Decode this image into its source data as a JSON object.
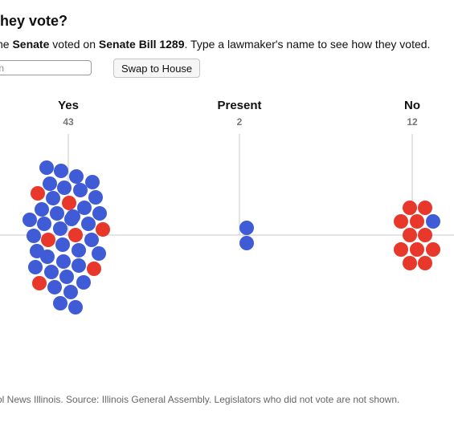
{
  "header": {
    "title": "they vote?",
    "subtitle_pre": "he ",
    "chamber": "Senate",
    "subtitle_mid": " voted on ",
    "bill": "Senate Bill 1289",
    "subtitle_post": ". Type a lawmaker's name to see how they voted."
  },
  "controls": {
    "search_placeholder": "non",
    "swap_label": "Swap to House"
  },
  "colors": {
    "democrat": "#3f5bd6",
    "republican": "#e8372b",
    "axis": "#c8c8c8"
  },
  "chart_data": {
    "type": "beeswarm",
    "title": "they vote?",
    "groups": [
      {
        "label": "Yes",
        "count_label": "43",
        "count": 43,
        "blue": 36,
        "red": 7
      },
      {
        "label": "Present",
        "count_label": "2",
        "count": 2,
        "blue": 2,
        "red": 0
      },
      {
        "label": "No",
        "count_label": "12",
        "count": 12,
        "blue": 1,
        "red": 11
      }
    ]
  },
  "footer": {
    "text": "ol News Illinois. Source: Illinois General Assembly. Legislators who did not vote are not shown."
  }
}
